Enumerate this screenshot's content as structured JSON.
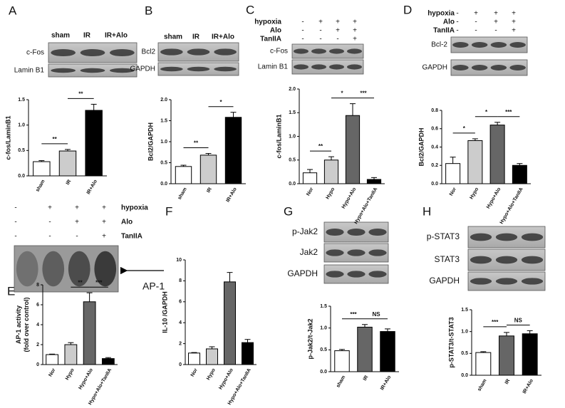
{
  "panels": [
    {
      "letter": "A",
      "columns": [
        "sham",
        "IR",
        "IR+Alo"
      ],
      "blot_rows": [
        "c-Fos",
        "Lamin B1"
      ],
      "treatments": []
    },
    {
      "letter": "B",
      "columns": [
        "sham",
        "IR",
        "IR+Alo"
      ],
      "blot_rows": [
        "Bcl2",
        "GAPDH"
      ],
      "treatments": []
    },
    {
      "letter": "C",
      "columns": [],
      "blot_rows": [
        "c-Fos",
        "Lamin B1"
      ],
      "treatments": [
        {
          "name": "hypoxia",
          "marks": [
            "-",
            "+",
            "+",
            "+"
          ]
        },
        {
          "name": "Alo",
          "marks": [
            "-",
            "-",
            "+",
            "+"
          ]
        },
        {
          "name": "TanIIA",
          "marks": [
            "-",
            "-",
            "-",
            "+"
          ]
        }
      ]
    },
    {
      "letter": "D",
      "columns": [],
      "blot_rows": [
        "Bcl-2",
        "GAPDH"
      ],
      "treatments": [
        {
          "name": "hypoxia",
          "marks": [
            "-",
            "+",
            "+",
            "+"
          ]
        },
        {
          "name": "Alo",
          "marks": [
            "-",
            "-",
            "+",
            "+"
          ]
        },
        {
          "name": "TanIIA",
          "marks": [
            "-",
            "-",
            "-",
            "+"
          ]
        }
      ]
    },
    {
      "letter": "E",
      "columns": [],
      "blot_rows": [],
      "marker": "AP-1",
      "treatments": [
        {
          "name": "hypoxia",
          "marks": [
            "-",
            "+",
            "+",
            "+"
          ]
        },
        {
          "name": "Alo",
          "marks": [
            "-",
            "-",
            "+",
            "+"
          ]
        },
        {
          "name": "TanIIA",
          "marks": [
            "-",
            "-",
            "-",
            "+"
          ]
        }
      ]
    },
    {
      "letter": "F",
      "columns": [],
      "blot_rows": [],
      "treatments": []
    },
    {
      "letter": "G",
      "columns": [],
      "blot_rows": [
        "p-Jak2",
        "Jak2",
        "GAPDH"
      ],
      "treatments": []
    },
    {
      "letter": "H",
      "columns": [],
      "blot_rows": [
        "p-STAT3",
        "STAT3",
        "GAPDH"
      ],
      "treatments": []
    }
  ],
  "chart_data": [
    {
      "type": "bar",
      "ylabel": [
        "c-fos/LaminB1"
      ],
      "categories": [
        "sham",
        "IR",
        "IR+Alo"
      ],
      "values": [
        0.28,
        0.49,
        1.29
      ],
      "errors": [
        0.02,
        0.03,
        0.12
      ],
      "colors": [
        "#ffffff",
        "#cccccc",
        "#000000"
      ],
      "ylim": [
        0,
        1.5
      ],
      "yticks": [
        {
          "value": 0,
          "label": "0.0"
        },
        {
          "value": 0.5,
          "label": "0.5"
        },
        {
          "value": 1,
          "label": "1.0"
        },
        {
          "value": 1.5,
          "label": "1.5"
        }
      ],
      "significance": [
        {
          "label": "**",
          "between": [
            "sham",
            "IR"
          ]
        },
        {
          "label": "**",
          "between": [
            "IR",
            "IR+Alo"
          ]
        }
      ]
    },
    {
      "type": "bar",
      "ylabel": [
        "Bcl2/GAPDH"
      ],
      "categories": [
        "sham",
        "IR",
        "IR+Alo"
      ],
      "values": [
        0.41,
        0.68,
        1.58
      ],
      "errors": [
        0.03,
        0.04,
        0.12
      ],
      "colors": [
        "#ffffff",
        "#cccccc",
        "#000000"
      ],
      "ylim": [
        0,
        2
      ],
      "yticks": [
        {
          "value": 0,
          "label": "0.0"
        },
        {
          "value": 0.5,
          "label": "0.5"
        },
        {
          "value": 1,
          "label": "1.0"
        },
        {
          "value": 1.5,
          "label": "1.5"
        },
        {
          "value": 2,
          "label": "2.0"
        }
      ],
      "significance": [
        {
          "label": "**",
          "between": [
            "sham",
            "IR"
          ]
        },
        {
          "label": "*",
          "between": [
            "IR",
            "IR+Alo"
          ]
        }
      ]
    },
    {
      "type": "bar",
      "ylabel": [
        "c-fos/LaminB1"
      ],
      "categories": [
        "Nor",
        "Hypo",
        "Hypo+Alo",
        "Hypo+Alo+TanIIA"
      ],
      "values": [
        0.23,
        0.5,
        1.44,
        0.09
      ],
      "errors": [
        0.07,
        0.07,
        0.25,
        0.04
      ],
      "colors": [
        "#ffffff",
        "#cccccc",
        "#666666",
        "#000000"
      ],
      "ylim": [
        0,
        2
      ],
      "yticks": [
        {
          "value": 0,
          "label": "0.0"
        },
        {
          "value": 0.5,
          "label": "0.5"
        },
        {
          "value": 1,
          "label": "1.0"
        },
        {
          "value": 1.5,
          "label": "1.5"
        },
        {
          "value": 2,
          "label": "2.0"
        }
      ],
      "significance": [
        {
          "label": "**",
          "between": [
            "Nor",
            "Hypo"
          ]
        },
        {
          "label": "*",
          "between": [
            "Hypo",
            "Hypo+Alo"
          ]
        },
        {
          "label": "***",
          "between": [
            "Hypo+Alo",
            "Hypo+Alo+TanIIA"
          ]
        }
      ]
    },
    {
      "type": "bar",
      "ylabel": [
        "Bcl2/GAPDH"
      ],
      "categories": [
        "Nor",
        "Hypo",
        "Hypo+Alo",
        "Hypo+Alo+TanIIA"
      ],
      "values": [
        0.22,
        0.47,
        0.64,
        0.2
      ],
      "errors": [
        0.07,
        0.02,
        0.03,
        0.02
      ],
      "colors": [
        "#ffffff",
        "#cccccc",
        "#666666",
        "#000000"
      ],
      "ylim": [
        0,
        0.8
      ],
      "yticks": [
        {
          "value": 0,
          "label": "0.0"
        },
        {
          "value": 0.2,
          "label": "0.2"
        },
        {
          "value": 0.4,
          "label": "0.4"
        },
        {
          "value": 0.6,
          "label": "0.6"
        },
        {
          "value": 0.8,
          "label": "0.8"
        }
      ],
      "significance": [
        {
          "label": "*",
          "between": [
            "Nor",
            "Hypo"
          ]
        },
        {
          "label": "*",
          "between": [
            "Hypo",
            "Hypo+Alo"
          ]
        },
        {
          "label": "***",
          "between": [
            "Hypo+Alo",
            "Hypo+Alo+TanIIA"
          ]
        }
      ]
    },
    {
      "type": "bar",
      "ylabel": [
        "AP-1 activity",
        "(fold over control)"
      ],
      "categories": [
        "Nor",
        "Hypo",
        "Hypo+Alo",
        "Hypo+Alo+TanIIA"
      ],
      "values": [
        1,
        2,
        6.3,
        0.6
      ],
      "errors": [
        0.05,
        0.2,
        0.9,
        0.1
      ],
      "colors": [
        "#ffffff",
        "#cccccc",
        "#666666",
        "#000000"
      ],
      "ylim": [
        0,
        8
      ],
      "yticks": [
        0,
        2,
        4,
        6,
        8
      ],
      "significance": [
        {
          "label": "**",
          "between": [
            "Hypo",
            "Hypo+Alo"
          ]
        },
        {
          "label": "***",
          "between": [
            "Hypo+Alo",
            "Hypo+Alo+TanIIA"
          ]
        }
      ]
    },
    {
      "type": "bar",
      "ylabel": [
        "IL-10 /GAPDH"
      ],
      "categories": [
        "Nor",
        "Hypo",
        "Hypo+Alo",
        "Hypo+Alo+TanIIA"
      ],
      "values": [
        1.1,
        1.5,
        7.9,
        2.1
      ],
      "errors": [
        0.05,
        0.2,
        0.9,
        0.3
      ],
      "colors": [
        "#ffffff",
        "#cccccc",
        "#666666",
        "#000000"
      ],
      "ylim": [
        0,
        10
      ],
      "yticks": [
        0,
        2,
        4,
        6,
        8,
        10
      ],
      "significance": []
    },
    {
      "type": "bar",
      "ylabel": [
        "p-Jak2/t-Jak2"
      ],
      "categories": [
        "sham",
        "IR",
        "IR+Alo"
      ],
      "values": [
        0.48,
        1.02,
        0.92
      ],
      "errors": [
        0.03,
        0.06,
        0.06
      ],
      "colors": [
        "#ffffff",
        "#666666",
        "#000000"
      ],
      "ylim": [
        0,
        1.5
      ],
      "yticks": [
        {
          "value": 0,
          "label": "0.0"
        },
        {
          "value": 0.5,
          "label": "0.5"
        },
        {
          "value": 1,
          "label": "1.0"
        },
        {
          "value": 1.5,
          "label": "1.5"
        }
      ],
      "significance": [
        {
          "label": "***",
          "between": [
            "sham",
            "IR"
          ]
        },
        {
          "label": "NS",
          "between": [
            "IR",
            "IR+Alo"
          ]
        }
      ]
    },
    {
      "type": "bar",
      "ylabel": [
        "p-STAT3/t-STAT3"
      ],
      "categories": [
        "sham",
        "IR",
        "IR+Alo"
      ],
      "values": [
        0.52,
        0.9,
        0.95
      ],
      "errors": [
        0.02,
        0.08,
        0.07
      ],
      "colors": [
        "#ffffff",
        "#666666",
        "#000000"
      ],
      "ylim": [
        0,
        1.5
      ],
      "yticks": [
        {
          "value": 0,
          "label": "0.0"
        },
        {
          "value": 0.5,
          "label": "0.5"
        },
        {
          "value": 1,
          "label": "1.0"
        },
        {
          "value": 1.5,
          "label": "1.5"
        }
      ],
      "significance": [
        {
          "label": "***",
          "between": [
            "sham",
            "IR"
          ]
        },
        {
          "label": "NS",
          "between": [
            "IR",
            "IR+Alo"
          ]
        }
      ]
    }
  ]
}
